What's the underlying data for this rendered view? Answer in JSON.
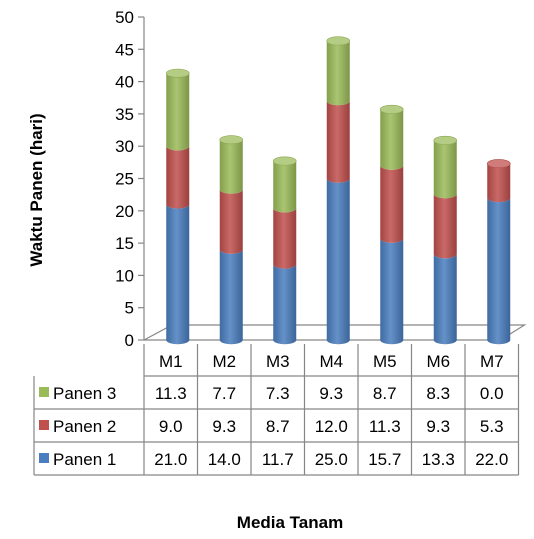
{
  "chart_data": {
    "type": "bar",
    "stacked": true,
    "style": "3d-cylinder",
    "categories": [
      "M1",
      "M2",
      "M3",
      "M4",
      "M5",
      "M6",
      "M7"
    ],
    "series": [
      {
        "name": "Panen 1",
        "values": [
          21.0,
          14.0,
          11.7,
          25.0,
          15.7,
          13.3,
          22.0
        ],
        "color": "#4a7ebf"
      },
      {
        "name": "Panen 2",
        "values": [
          9.0,
          9.3,
          8.7,
          12.0,
          11.3,
          9.3,
          5.3
        ],
        "color": "#c0504d"
      },
      {
        "name": "Panen 3",
        "values": [
          11.3,
          7.7,
          7.3,
          9.3,
          8.7,
          8.3,
          0.0
        ],
        "color": "#9bbb59"
      }
    ],
    "value_labels": {
      "Panen 1": [
        "21.0",
        "14.0",
        "11.7",
        "25.0",
        "15.7",
        "13.3",
        "22.0"
      ],
      "Panen 2": [
        "9.0",
        "9.3",
        "8.7",
        "12.0",
        "11.3",
        "9.3",
        "5.3"
      ],
      "Panen 3": [
        "11.3",
        "7.7",
        "7.3",
        "9.3",
        "8.7",
        "8.3",
        "0.0"
      ]
    },
    "ylim": [
      0,
      50
    ],
    "y_ticks": [
      "0",
      "5",
      "10",
      "15",
      "20",
      "25",
      "30",
      "35",
      "40",
      "45",
      "50"
    ],
    "ylabel": "Waktu Panen (hari)",
    "xlabel": "Media Tanam",
    "legend": "data-table",
    "grid": false
  }
}
